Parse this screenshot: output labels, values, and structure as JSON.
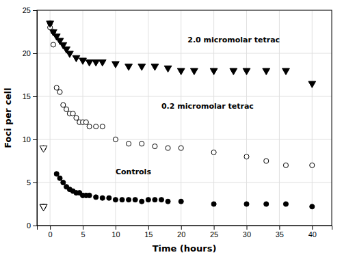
{
  "chart_data": {
    "type": "scatter",
    "x_label": "Time (hours)",
    "y_label": "Foci per cell",
    "xlim": [
      -2,
      43
    ],
    "ylim": [
      0,
      25
    ],
    "xticks": [
      0,
      5,
      10,
      15,
      20,
      25,
      30,
      35,
      40
    ],
    "yticks": [
      0,
      5,
      10,
      15,
      20,
      25
    ],
    "grid": true,
    "series": [
      {
        "color": "black",
        "marker": "circle",
        "x": [
          -1,
          0,
          0.5,
          1,
          1.5,
          2,
          2.5,
          3,
          3.5,
          4,
          4.5,
          5,
          5.5,
          6,
          7,
          8,
          9,
          10,
          11,
          12,
          13,
          14,
          15,
          16,
          17,
          18,
          20,
          25,
          30,
          33,
          36,
          40
        ],
        "values": [
          2.2,
          23.5,
          22.5,
          6.0,
          5.5,
          5.0,
          4.5,
          4.2,
          4.0,
          3.8,
          3.8,
          3.5,
          3.5,
          3.5,
          3.3,
          3.2,
          3.2,
          3.0,
          3.0,
          3.0,
          3.0,
          2.8,
          3.0,
          3.0,
          3.0,
          2.8,
          2.8,
          2.5,
          2.5,
          2.5,
          2.5,
          2.2
        ]
      },
      {
        "color": "black",
        "marker": "circle-open",
        "x": [
          -1,
          0,
          0.5,
          1,
          1.5,
          2,
          2.5,
          3,
          3.5,
          4,
          4.5,
          5,
          5.5,
          6,
          7,
          8,
          10,
          12,
          14,
          16,
          18,
          20,
          25,
          30,
          33,
          36,
          40
        ],
        "values": [
          9.0,
          23.0,
          21.0,
          16.0,
          15.5,
          14.0,
          13.5,
          13.0,
          13.0,
          12.5,
          12.0,
          12.0,
          12.0,
          11.5,
          11.5,
          11.5,
          10.0,
          9.5,
          9.5,
          9.2,
          9.0,
          9.0,
          8.5,
          8.0,
          7.5,
          7.0,
          7.0
        ]
      },
      {
        "color": "black",
        "marker": "triangle-down",
        "x": [
          -1,
          0,
          0.5,
          1,
          1.5,
          2,
          2.5,
          3,
          4,
          5,
          6,
          7,
          8,
          10,
          12,
          14,
          16,
          18,
          20,
          22,
          25,
          28,
          30,
          33,
          36,
          40
        ],
        "values": [
          2.2,
          23.5,
          22.5,
          22.0,
          21.5,
          21.0,
          20.5,
          20.0,
          19.5,
          19.2,
          19.0,
          19.0,
          19.0,
          18.8,
          18.5,
          18.5,
          18.5,
          18.3,
          18.0,
          18.0,
          18.0,
          18.0,
          18.0,
          18.0,
          18.0,
          16.5
        ]
      },
      {
        "color": "black",
        "marker": "triangle-down-open",
        "x": [
          -1,
          -1
        ],
        "values": [
          2.2,
          9.0
        ]
      }
    ],
    "annotations": [
      {
        "text": "2.0 micromolar tetrac",
        "x": 21,
        "y": 21.5
      },
      {
        "text": "0.2 micromolar tetrac",
        "x": 17,
        "y": 13.8
      },
      {
        "text": "Controls",
        "x": 10,
        "y": 6.2
      }
    ]
  }
}
